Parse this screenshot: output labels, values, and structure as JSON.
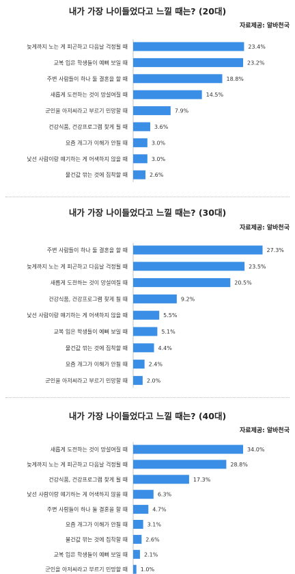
{
  "source": "자료제공: 알바천국",
  "chart_data": [
    {
      "type": "bar",
      "orientation": "horizontal",
      "title": "내가 가장 나이들었다고 느낄 때는? (20대)",
      "categories": [
        "늦게까지 노는 게 피곤하고 다음날 걱정될 때",
        "교복 입은 학생들이 예뻐 보일 때",
        "주변 사람들이 하나 둘 결혼을 할 때",
        "새롭게 도전하는 것이 망설여질 때",
        "군인을 아저씨라고 부르기 민망할 때",
        "건강식품, 건강프로그램 찾게 될 때",
        "요즘 개그가 이해가 안될 때",
        "낯선 사람이랑 얘기하는 게 어색하지 않을 때",
        "물건값 깎는 것에 집착할 때"
      ],
      "values": [
        23.4,
        23.2,
        18.8,
        14.5,
        7.9,
        3.6,
        3.0,
        3.0,
        2.6
      ],
      "value_labels": [
        "23.4%",
        "23.2%",
        "18.8%",
        "14.5%",
        "7.9%",
        "3.6%",
        "3.0%",
        "3.0%",
        "2.6%"
      ],
      "unit": "%",
      "bar_color": "#3a8ee6"
    },
    {
      "type": "bar",
      "orientation": "horizontal",
      "title": "내가 가장 나이들었다고 느낄 때는? (30대)",
      "categories": [
        "주변 사람들이 하나 둘 결혼을 할 때",
        "늦게까지 노는 게 피곤하고 다음날 걱정될 때",
        "새롭게 도전하는 것이 망설여질 때",
        "건강식품, 건강프로그램 찾게 될 때",
        "낯선 사람이랑 얘기하는 게 어색하지 않을 때",
        "교복 입은 학생들이 예뻐 보일 때",
        "물건값 깎는 것에 집착할 때",
        "요즘 개그가 이해가 안될 때",
        "군인을 아저씨라고 부르기 민망할 때"
      ],
      "values": [
        27.3,
        23.5,
        20.5,
        9.2,
        5.5,
        5.1,
        4.4,
        2.4,
        2.0
      ],
      "value_labels": [
        "27.3%",
        "23.5%",
        "20.5%",
        "9.2%",
        "5.5%",
        "5.1%",
        "4.4%",
        "2.4%",
        "2.0%"
      ],
      "unit": "%",
      "bar_color": "#3a8ee6"
    },
    {
      "type": "bar",
      "orientation": "horizontal",
      "title": "내가 가장 나이들었다고 느낄 때는? (40대)",
      "categories": [
        "새롭게 도전하는 것이 망설여질 때",
        "늦게까지 노는 게 피곤하고 다음날 걱정될 때",
        "건강식품, 건강프로그램 찾게 될 때",
        "낯선 사람이랑 얘기하는 게 어색하지 않을 때",
        "주변 사람들이 하나 둘 결혼을 할 때",
        "요즘 개그가 이해가 안될 때",
        "물건값 깎는 것에 집착할 때",
        "교복 입은 학생들이 예뻐 보일 때",
        "군인을 아저씨라고 부르기 민망할 때"
      ],
      "values": [
        34.0,
        28.8,
        17.3,
        6.3,
        4.7,
        3.1,
        2.6,
        2.1,
        1.0
      ],
      "value_labels": [
        "34.0%",
        "28.8%",
        "17.3%",
        "6.3%",
        "4.7%",
        "3.1%",
        "2.6%",
        "2.1%",
        "1.0%"
      ],
      "unit": "%",
      "bar_color": "#3a8ee6"
    }
  ]
}
